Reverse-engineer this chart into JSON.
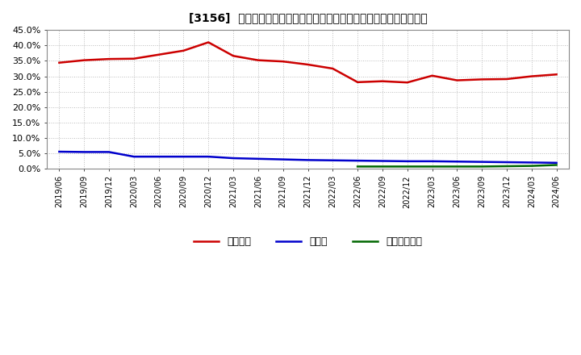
{
  "title": "[3156]  自己資本、のれん、繰延税金資産の総資産に対する比率の推移",
  "x_labels": [
    "2019/06",
    "2019/09",
    "2019/12",
    "2020/03",
    "2020/06",
    "2020/09",
    "2020/12",
    "2021/03",
    "2021/06",
    "2021/09",
    "2021/12",
    "2022/03",
    "2022/06",
    "2022/09",
    "2022/12",
    "2023/03",
    "2023/06",
    "2023/09",
    "2023/12",
    "2024/03",
    "2024/06"
  ],
  "jikoshihon": [
    0.344,
    0.352,
    0.356,
    0.357,
    0.37,
    0.383,
    0.41,
    0.366,
    0.352,
    0.348,
    0.338,
    0.325,
    0.281,
    0.284,
    0.28,
    0.302,
    0.287,
    0.29,
    0.291,
    0.3,
    0.306
  ],
  "noren": [
    0.056,
    0.055,
    0.055,
    0.04,
    0.04,
    0.04,
    0.04,
    0.035,
    0.033,
    0.031,
    0.029,
    0.028,
    0.027,
    0.026,
    0.025,
    0.025,
    0.024,
    0.023,
    0.022,
    0.021,
    0.02
  ],
  "kurinobe": [
    null,
    null,
    null,
    null,
    null,
    null,
    null,
    null,
    null,
    null,
    null,
    null,
    0.008,
    0.008,
    0.008,
    0.008,
    0.008,
    0.008,
    0.009,
    0.01,
    0.013
  ],
  "jikoshihon_color": "#cc0000",
  "noren_color": "#0000cc",
  "kurinobe_color": "#006600",
  "legend_labels": [
    "自己資本",
    "のれん",
    "繰延税金資産"
  ],
  "ylim": [
    0.0,
    0.45
  ],
  "yticks": [
    0.0,
    0.05,
    0.1,
    0.15,
    0.2,
    0.25,
    0.3,
    0.35,
    0.4,
    0.45
  ],
  "bg_color": "#ffffff",
  "grid_color": "#aaaaaa",
  "linewidth": 1.8
}
